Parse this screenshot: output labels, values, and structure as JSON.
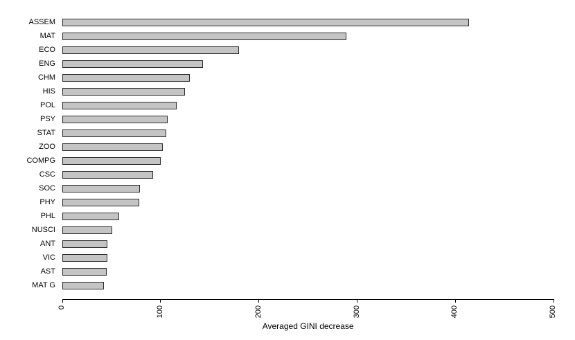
{
  "figure": {
    "background": "#ffffff"
  },
  "chart_data": {
    "type": "bar",
    "orientation": "horizontal",
    "xlabel": "Averaged GINI decrease",
    "categories": [
      "ASSEM",
      "MAT",
      "ECO",
      "ENG",
      "CHM",
      "HIS",
      "POL",
      "PSY",
      "STAT",
      "ZOO",
      "COMPG",
      "CSC",
      "SOC",
      "PHY",
      "PHL",
      "NUSCI",
      "ANT",
      "VIC",
      "AST",
      "MAT G"
    ],
    "values": [
      414,
      289,
      180,
      143,
      130,
      125,
      116,
      107,
      106,
      102,
      100,
      92,
      79,
      78,
      58,
      51,
      46,
      46,
      45,
      42
    ],
    "xlim": [
      0,
      500
    ],
    "xticks": [
      0,
      100,
      200,
      300,
      400,
      500
    ],
    "tick_label_rotation": -90,
    "grid": false,
    "sort_order": "descending",
    "bar_fill": "#c4c4c4",
    "bar_border": "#2b2b2b",
    "axis_color": "#000000",
    "text_color": "#000000"
  }
}
